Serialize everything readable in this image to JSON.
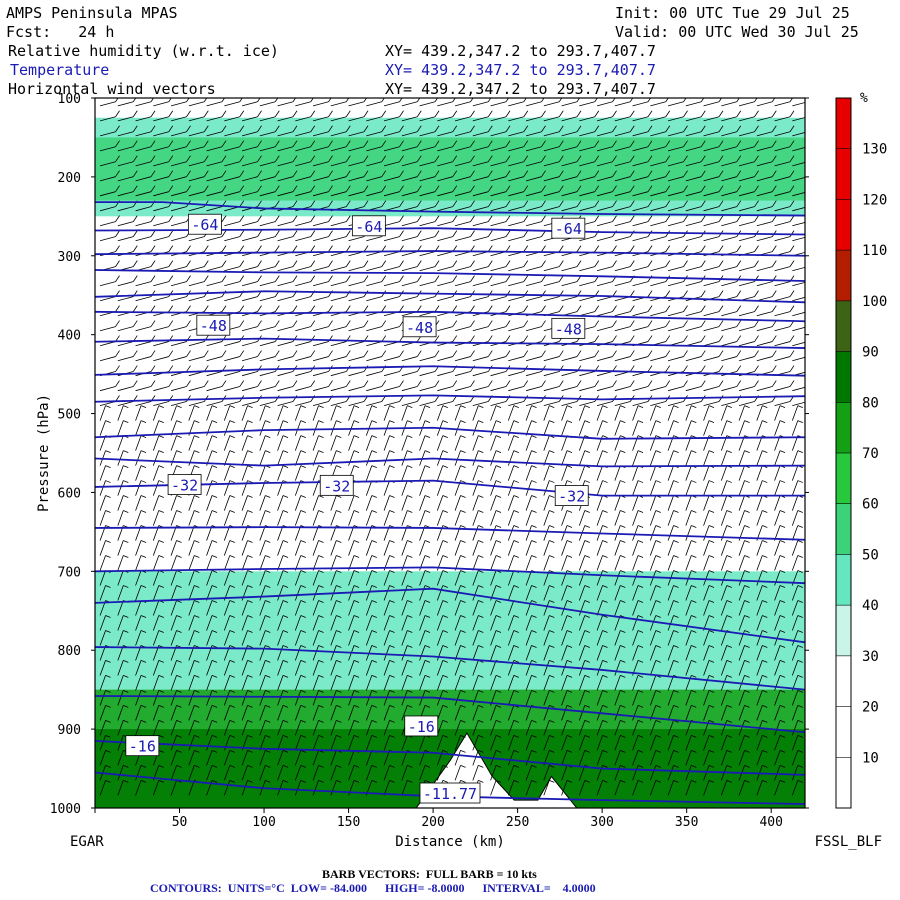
{
  "header": {
    "model": "AMPS Peninsula MPAS",
    "init": "Init: 00 UTC Tue 29 Jul 25",
    "fcst": "Fcst:   24 h",
    "valid": "Valid: 00 UTC Wed 30 Jul 25",
    "fields": [
      {
        "name": "Relative humidity (w.r.t. ice)",
        "xy": "XY= 439.2,347.2 to 293.7,407.7"
      },
      {
        "name": "Temperature",
        "xy": "XY= 439.2,347.2 to 293.7,407.7"
      },
      {
        "name": "Horizontal wind vectors",
        "xy": "XY= 439.2,347.2 to 293.7,407.7"
      }
    ]
  },
  "colors": {
    "temperature_contour": "#1a1ab4",
    "rh_scale": [
      "#ffffff",
      "#ffffff",
      "#ffffff",
      "#c8f5e8",
      "#64e6be",
      "#3cd278",
      "#28c83c",
      "#14a014",
      "#007800",
      "#3c6414",
      "#b41e00",
      "#e60000"
    ]
  },
  "chart_data": {
    "type": "cross-section",
    "xlabel": "Distance (km)",
    "ylabel": "Pressure (hPa)",
    "x_ticks": [
      0,
      50,
      100,
      150,
      200,
      250,
      300,
      350,
      400
    ],
    "x_tick_labels": [
      "",
      "50",
      "100",
      "150",
      "200",
      "250",
      "300",
      "350",
      "400"
    ],
    "xlim": [
      0,
      420
    ],
    "y_ticks": [
      100,
      200,
      300,
      400,
      500,
      600,
      700,
      800,
      900,
      1000
    ],
    "ylim": [
      100,
      1000
    ],
    "left_endpoint": "EGAR",
    "right_endpoint": "FSSL_BLF",
    "colorbar": {
      "unit": "%",
      "bounds": [
        0,
        10,
        20,
        30,
        40,
        50,
        60,
        70,
        80,
        90,
        100,
        110,
        120,
        130,
        140
      ],
      "labels": [
        10,
        20,
        30,
        40,
        50,
        60,
        70,
        80,
        90,
        100,
        110,
        120,
        130
      ]
    },
    "temperature_contours": {
      "low": -84,
      "high": -8,
      "interval": 4,
      "labels": [
        {
          "text": "-64",
          "x": 65,
          "p": 260
        },
        {
          "text": "-64",
          "x": 162,
          "p": 262
        },
        {
          "text": "-64",
          "x": 280,
          "p": 265
        },
        {
          "text": "-48",
          "x": 70,
          "p": 388
        },
        {
          "text": "-48",
          "x": 192,
          "p": 390
        },
        {
          "text": "-48",
          "x": 280,
          "p": 392
        },
        {
          "text": "-32",
          "x": 53,
          "p": 590
        },
        {
          "text": "-32",
          "x": 143,
          "p": 591
        },
        {
          "text": "-32",
          "x": 282,
          "p": 604
        },
        {
          "text": "-16",
          "x": 28,
          "p": 921
        },
        {
          "text": "-16",
          "x": 193,
          "p": 896
        },
        {
          "text": "-11.77",
          "x": 210,
          "p": 981
        }
      ],
      "isotherm_pressure_levels": [
        [
          [
            0,
            232
          ],
          [
            40,
            232
          ],
          [
            100,
            240
          ],
          [
            200,
            244
          ],
          [
            300,
            247
          ],
          [
            420,
            249
          ]
        ],
        [
          [
            0,
            268
          ],
          [
            100,
            267
          ],
          [
            200,
            265
          ],
          [
            300,
            270
          ],
          [
            420,
            273
          ]
        ],
        [
          [
            0,
            298
          ],
          [
            100,
            296
          ],
          [
            200,
            294
          ],
          [
            300,
            296
          ],
          [
            420,
            300
          ]
        ],
        [
          [
            0,
            318
          ],
          [
            100,
            321
          ],
          [
            200,
            322
          ],
          [
            300,
            326
          ],
          [
            420,
            332
          ]
        ],
        [
          [
            0,
            352
          ],
          [
            100,
            345
          ],
          [
            200,
            348
          ],
          [
            300,
            351
          ],
          [
            420,
            359
          ]
        ],
        [
          [
            0,
            371
          ],
          [
            100,
            373
          ],
          [
            200,
            371
          ],
          [
            300,
            377
          ],
          [
            420,
            383
          ]
        ],
        [
          [
            0,
            409
          ],
          [
            100,
            405
          ],
          [
            200,
            410
          ],
          [
            300,
            412
          ],
          [
            420,
            417
          ]
        ],
        [
          [
            0,
            451
          ],
          [
            100,
            444
          ],
          [
            200,
            440
          ],
          [
            300,
            446
          ],
          [
            420,
            452
          ]
        ],
        [
          [
            0,
            485
          ],
          [
            100,
            480
          ],
          [
            200,
            477
          ],
          [
            300,
            482
          ],
          [
            420,
            478
          ]
        ],
        [
          [
            0,
            530
          ],
          [
            100,
            521
          ],
          [
            200,
            518
          ],
          [
            300,
            532
          ],
          [
            420,
            530
          ]
        ],
        [
          [
            0,
            557
          ],
          [
            100,
            566
          ],
          [
            200,
            557
          ],
          [
            300,
            567
          ],
          [
            420,
            566
          ]
        ],
        [
          [
            0,
            593
          ],
          [
            100,
            588
          ],
          [
            200,
            585
          ],
          [
            300,
            604
          ],
          [
            420,
            604
          ]
        ],
        [
          [
            0,
            645
          ],
          [
            100,
            644
          ],
          [
            200,
            645
          ],
          [
            300,
            652
          ],
          [
            420,
            660
          ]
        ],
        [
          [
            0,
            700
          ],
          [
            100,
            697
          ],
          [
            200,
            695
          ],
          [
            300,
            705
          ],
          [
            420,
            715
          ]
        ],
        [
          [
            0,
            740
          ],
          [
            100,
            732
          ],
          [
            200,
            722
          ],
          [
            300,
            755
          ],
          [
            420,
            790
          ]
        ],
        [
          [
            0,
            796
          ],
          [
            100,
            798
          ],
          [
            200,
            808
          ],
          [
            300,
            825
          ],
          [
            420,
            850
          ]
        ],
        [
          [
            0,
            858
          ],
          [
            100,
            859
          ],
          [
            200,
            860
          ],
          [
            300,
            880
          ],
          [
            420,
            904
          ]
        ],
        [
          [
            0,
            915
          ],
          [
            100,
            925
          ],
          [
            200,
            930
          ],
          [
            300,
            950
          ],
          [
            420,
            958
          ]
        ],
        [
          [
            0,
            955
          ],
          [
            100,
            975
          ],
          [
            200,
            985
          ],
          [
            300,
            990
          ],
          [
            420,
            995
          ]
        ]
      ]
    },
    "rh_bands": [
      {
        "p_range": [
          125,
          250
        ],
        "rh": 40
      },
      {
        "p_range": [
          150,
          230
        ],
        "rh": 55
      },
      {
        "p_range": [
          700,
          1000
        ],
        "rh": 45
      },
      {
        "p_range": [
          850,
          1000
        ],
        "rh": 75
      },
      {
        "p_range": [
          900,
          1000
        ],
        "rh": 85
      }
    ],
    "terrain": [
      [
        190,
        1000
      ],
      [
        210,
        940
      ],
      [
        220,
        905
      ],
      [
        235,
        960
      ],
      [
        248,
        990
      ],
      [
        262,
        990
      ],
      [
        270,
        960
      ],
      [
        285,
        1000
      ]
    ]
  },
  "footer": {
    "barb": "BARB VECTORS:  FULL BARB = 10 kts",
    "contours": "CONTOURS:  UNITS=°C  LOW= -84.000      HIGH= -8.0000      INTERVAL=    4.0000"
  }
}
